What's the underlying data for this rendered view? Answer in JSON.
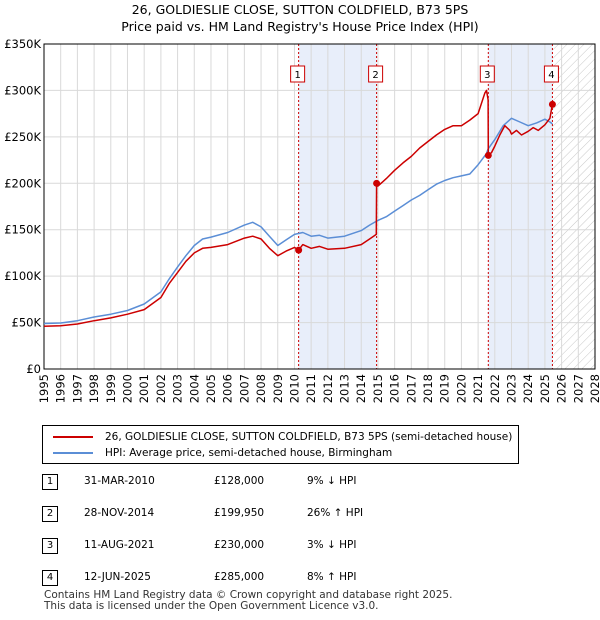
{
  "chart_data": {
    "type": "line",
    "title": "26, GOLDIESLIE CLOSE, SUTTON COLDFIELD, B73 5PS",
    "subtitle": "Price paid vs. HM Land Registry's House Price Index (HPI)",
    "xlim": [
      1995,
      2028
    ],
    "ylim": [
      0,
      350000
    ],
    "x_ticks": [
      1995,
      1996,
      1997,
      1998,
      1999,
      2000,
      2001,
      2002,
      2003,
      2004,
      2005,
      2006,
      2007,
      2008,
      2009,
      2010,
      2011,
      2012,
      2013,
      2014,
      2015,
      2016,
      2017,
      2018,
      2019,
      2020,
      2021,
      2022,
      2023,
      2024,
      2025,
      2026,
      2027,
      2028
    ],
    "y_ticks": [
      0,
      50000,
      100000,
      150000,
      200000,
      250000,
      300000,
      350000
    ],
    "y_tick_labels": [
      "£0",
      "£50K",
      "£100K",
      "£150K",
      "£200K",
      "£250K",
      "£300K",
      "£350K"
    ],
    "shaded_periods": [
      [
        2010.25,
        2014.92
      ],
      [
        2021.61,
        2025.45
      ]
    ],
    "forecast_start": 2025.45,
    "series": [
      {
        "name": "26, GOLDIESLIE CLOSE, SUTTON COLDFIELD, B73 5PS (semi-detached house)",
        "color": "#cc0000",
        "x": [
          1995.0,
          1996.0,
          1997.0,
          1998.0,
          1999.0,
          2000.0,
          2001.0,
          2002.0,
          2002.5,
          2003.0,
          2003.5,
          2004.0,
          2004.5,
          2005.0,
          2006.0,
          2007.0,
          2007.5,
          2008.0,
          2008.5,
          2009.0,
          2009.5,
          2010.0,
          2010.25,
          2010.5,
          2011.0,
          2011.5,
          2012.0,
          2013.0,
          2014.0,
          2014.5,
          2014.9,
          2014.92,
          2015.0,
          2015.5,
          2016.0,
          2016.5,
          2017.0,
          2017.5,
          2018.0,
          2018.5,
          2019.0,
          2019.5,
          2020.0,
          2020.5,
          2021.0,
          2021.4,
          2021.5,
          2021.6,
          2021.61,
          2021.8,
          2022.0,
          2022.3,
          2022.6,
          2022.9,
          2023.0,
          2023.3,
          2023.6,
          2024.0,
          2024.3,
          2024.6,
          2025.0,
          2025.3,
          2025.45
        ],
        "y": [
          46000,
          46500,
          48500,
          52000,
          55000,
          59000,
          64000,
          77000,
          92000,
          104000,
          116000,
          125000,
          130000,
          131000,
          134000,
          141000,
          143000,
          140000,
          130000,
          122000,
          127000,
          131000,
          128000,
          134000,
          130000,
          132000,
          129000,
          130000,
          134000,
          140000,
          145000,
          199950,
          197000,
          205000,
          214000,
          222000,
          229000,
          238000,
          245000,
          252000,
          258000,
          262000,
          262000,
          268000,
          275000,
          297000,
          300000,
          290000,
          230000,
          233000,
          240000,
          252000,
          262000,
          257000,
          253000,
          257000,
          252000,
          256000,
          260000,
          257000,
          263000,
          270000,
          285000
        ]
      },
      {
        "name": "HPI: Average price, semi-detached house, Birmingham",
        "color": "#5b8ed6",
        "x": [
          1995.0,
          1996.0,
          1997.0,
          1998.0,
          1999.0,
          2000.0,
          2001.0,
          2002.0,
          2002.5,
          2003.0,
          2003.5,
          2004.0,
          2004.5,
          2005.0,
          2006.0,
          2007.0,
          2007.5,
          2008.0,
          2008.5,
          2009.0,
          2009.5,
          2010.0,
          2010.5,
          2011.0,
          2011.5,
          2012.0,
          2013.0,
          2014.0,
          2014.5,
          2015.0,
          2015.5,
          2016.0,
          2016.5,
          2017.0,
          2017.5,
          2018.0,
          2018.5,
          2019.0,
          2019.5,
          2020.0,
          2020.5,
          2021.0,
          2021.5,
          2021.6,
          2022.0,
          2022.5,
          2023.0,
          2023.5,
          2024.0,
          2024.5,
          2025.0,
          2025.3,
          2025.45
        ],
        "y": [
          49000,
          49500,
          52000,
          56000,
          59000,
          63000,
          70000,
          83000,
          97000,
          110000,
          122000,
          133000,
          140000,
          142000,
          147000,
          155000,
          158000,
          153000,
          143000,
          133000,
          139000,
          145000,
          147000,
          143000,
          144000,
          141000,
          143000,
          149000,
          155000,
          160000,
          164000,
          170000,
          176000,
          182000,
          187000,
          193000,
          199000,
          203000,
          206000,
          208000,
          210000,
          220000,
          232000,
          237000,
          247000,
          262000,
          270000,
          266000,
          262000,
          265000,
          269000,
          266000,
          264000
        ]
      }
    ],
    "sales": [
      {
        "label": "1",
        "x": 2010.25,
        "y": 128000
      },
      {
        "label": "2",
        "x": 2014.92,
        "y": 199950
      },
      {
        "label": "3",
        "x": 2021.61,
        "y": 230000
      },
      {
        "label": "4",
        "x": 2025.45,
        "y": 285000
      }
    ]
  },
  "legend": {
    "property_label": "26, GOLDIESLIE CLOSE, SUTTON COLDFIELD, B73 5PS (semi-detached house)",
    "hpi_label": "HPI: Average price, semi-detached house, Birmingham"
  },
  "transactions": [
    {
      "num": "1",
      "date": "31-MAR-2010",
      "price": "£128,000",
      "hpi": "9% ↓ HPI"
    },
    {
      "num": "2",
      "date": "28-NOV-2014",
      "price": "£199,950",
      "hpi": "26% ↑ HPI"
    },
    {
      "num": "3",
      "date": "11-AUG-2021",
      "price": "£230,000",
      "hpi": "3% ↓ HPI"
    },
    {
      "num": "4",
      "date": "12-JUN-2025",
      "price": "£285,000",
      "hpi": "8% ↑ HPI"
    }
  ],
  "footer": {
    "line1": "Contains HM Land Registry data © Crown copyright and database right 2025.",
    "line2": "This data is licensed under the Open Government Licence v3.0."
  },
  "colors": {
    "property": "#cc0000",
    "hpi": "#5b8ed6",
    "shade": "#e8eefa",
    "grid": "#d9d9d9",
    "vline": "#cc0000"
  }
}
